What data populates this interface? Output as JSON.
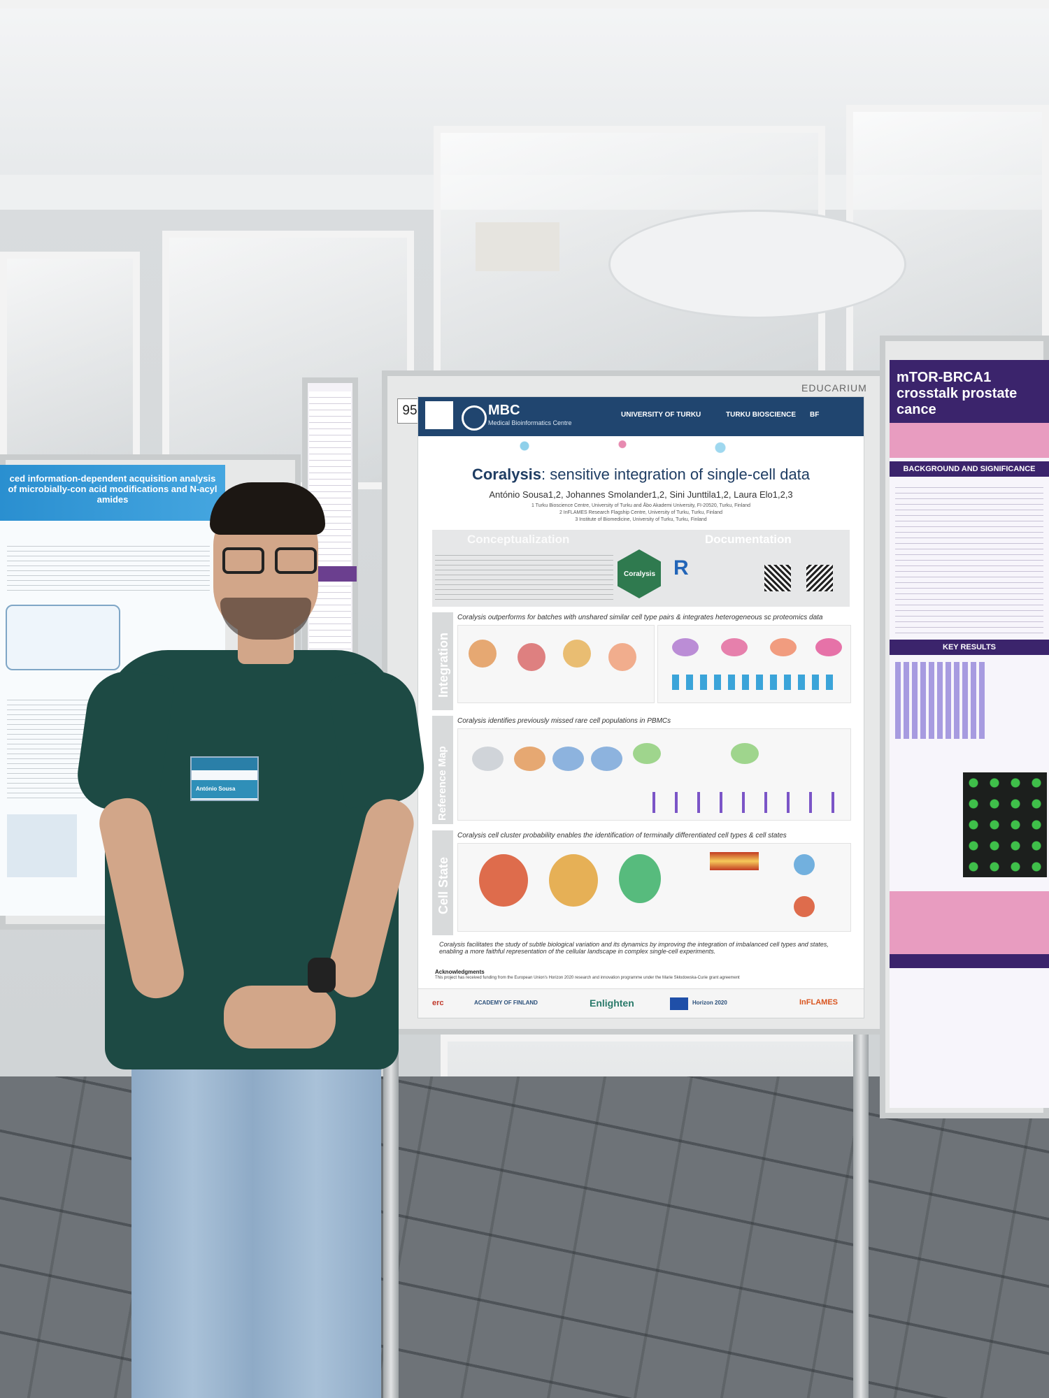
{
  "scene": {
    "poster_number": "95",
    "board_label": "EDUCARIUM"
  },
  "main_poster": {
    "header": {
      "logo": "MBC",
      "logo_sub": "Medical Bioinformatics Centre",
      "partners": [
        "UNIVERSITY OF TURKU",
        "TURKU BIOSCIENCE",
        "BF"
      ]
    },
    "title_bold": "Coralysis",
    "title_rest": ": sensitive integration of single-cell data",
    "authors": "António Sousa1,2, Johannes Smolander1,2, Sini Junttila1,2, Laura Elo1,2,3",
    "affiliations": [
      "1 Turku Bioscience Centre, University of Turku and Åbo Akademi University, FI-20520, Turku, Finland",
      "2 InFLAMES Research Flagship Centre, University of Turku, Turku, Finland",
      "3 Institute of Biomedicine, University of Turku, Turku, Finland"
    ],
    "sections": {
      "conceptualization": "Conceptualization",
      "documentation": "Documentation",
      "coralysis_badge": "Coralysis",
      "integration": "Integration",
      "reference_map": "Reference Map",
      "cell_state": "Cell State"
    },
    "panel_titles": [
      "Coralysis outperforms for batches with unshared similar cell type pairs & integrates heterogeneous sc proteomics data",
      "Coralysis identifies previously missed rare cell populations in PBMCs",
      "Coralysis cell cluster probability enables the identification of terminally differentiated cell types & cell states"
    ],
    "conclusion": "Coralysis facilitates the study of subtle biological variation and its dynamics by improving the integration of imbalanced cell types and states, enabling a more faithful representation of the cellular landscape in complex single-cell experiments.",
    "acknowledgments_title": "Acknowledgments",
    "acknowledgments_text": "This project has received funding from the European Union's Horizon 2020 research and innovation programme under the Marie Skłodowska-Curie grant agreement",
    "funders": [
      "erc",
      "ACADEMY OF FINLAND",
      "Enlighten",
      "Horizon 2020",
      "InFLAMES"
    ]
  },
  "left_poster": {
    "title": "ced information-dependent acquisition analysis of microbially-con acid modifications and N-acyl amides"
  },
  "right_poster": {
    "title": "mTOR-BRCA1 crosstalk prostate cance",
    "section_1": "BACKGROUND AND SIGNIFICANCE",
    "section_2": "KEY RESULTS"
  },
  "badge": {
    "name": "António Sousa"
  },
  "colors": {
    "poster_header": "#20456f",
    "section_gray": "#c9cbcc",
    "left_poster_header": "#2a8fd0",
    "right_poster_header": "#3b246c",
    "shirt": "#1d4a44"
  }
}
